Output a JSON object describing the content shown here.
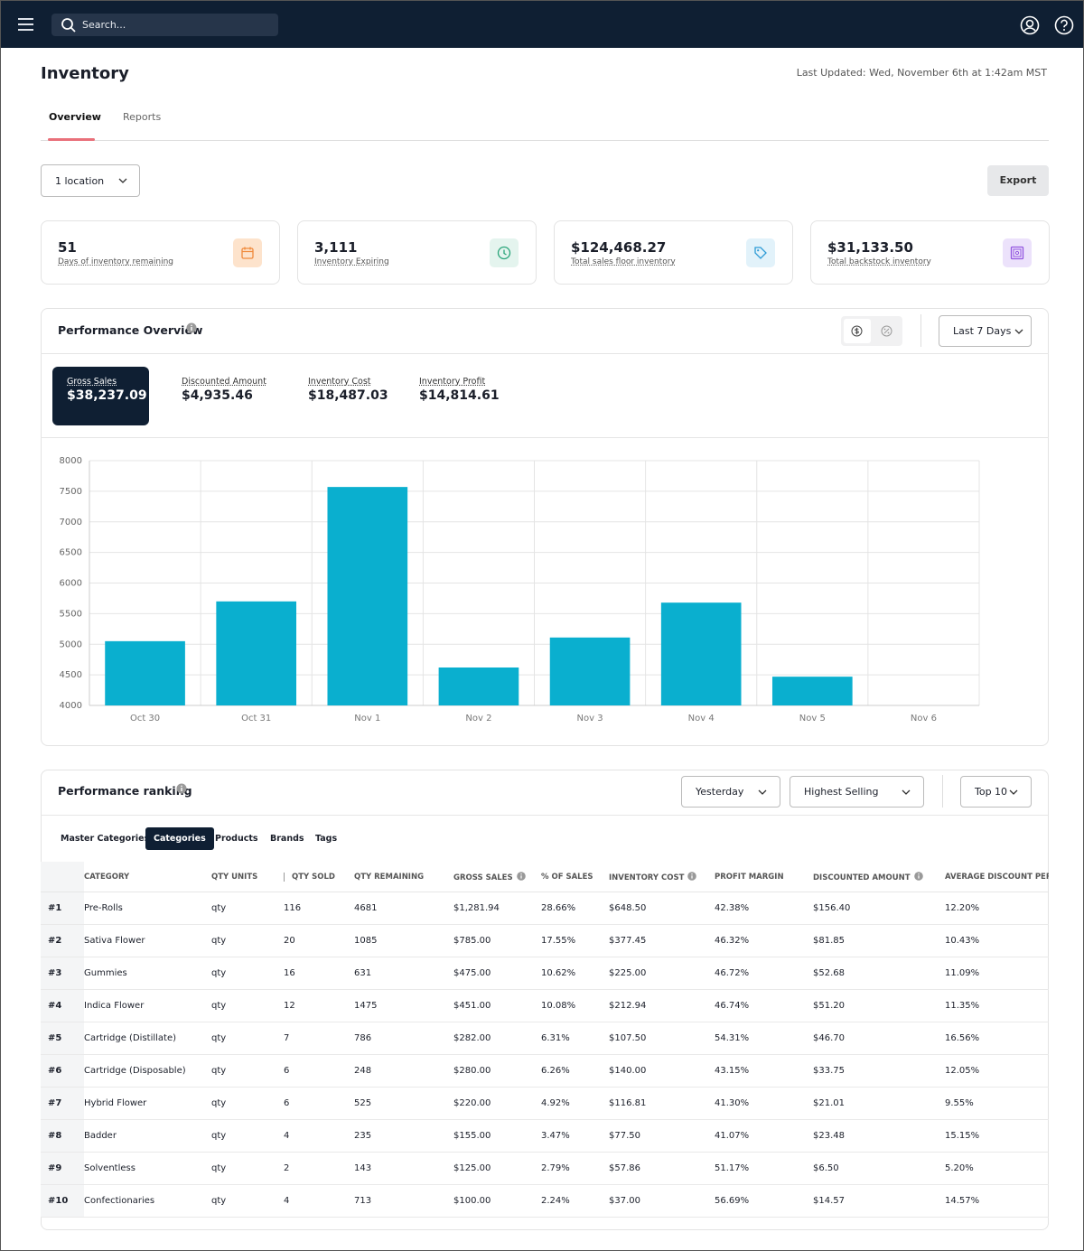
{
  "nav": {
    "search_placeholder": "Search..."
  },
  "header": {
    "title": "Inventory",
    "last_updated": "Last Updated: Wed, November 6th at 1:42am MST"
  },
  "tabs": [
    "Overview",
    "Reports"
  ],
  "controls": {
    "location": "1 location",
    "export": "Export"
  },
  "kpis": [
    {
      "value": "51",
      "label": "Days of inventory remaining"
    },
    {
      "value": "3,111",
      "label": "Inventory Expiring"
    },
    {
      "value": "$124,468.27",
      "label": "Total sales floor inventory"
    },
    {
      "value": "$31,133.50",
      "label": "Total backstock inventory"
    }
  ],
  "performance": {
    "title": "Performance Overview",
    "range": "Last 7 Days",
    "metrics": [
      {
        "label": "Gross Sales",
        "value": "$38,237.09"
      },
      {
        "label": "Discounted Amount",
        "value": "$4,935.46"
      },
      {
        "label": "Inventory Cost",
        "value": "$18,487.03"
      },
      {
        "label": "Inventory Profit",
        "value": "$14,814.61"
      }
    ]
  },
  "chart_data": {
    "type": "bar",
    "categories": [
      "Oct 30",
      "Oct 31",
      "Nov 1",
      "Nov 2",
      "Nov 3",
      "Nov 4",
      "Nov 5",
      "Nov 6"
    ],
    "values": [
      5050,
      5700,
      7570,
      4620,
      5110,
      5680,
      4470,
      null
    ],
    "color": "#0aafcf",
    "ylim": [
      4000,
      8000
    ],
    "yticks": [
      4000,
      4500,
      5000,
      5500,
      6000,
      6500,
      7000,
      7500,
      8000
    ],
    "grid": true
  },
  "ranking": {
    "title": "Performance ranking",
    "filters": [
      "Yesterday",
      "Highest Selling",
      "Top 10"
    ],
    "tabs": [
      "Master Categories",
      "Categories",
      "Products",
      "Brands",
      "Tags"
    ],
    "table": {
      "columns": [
        "CATEGORY",
        "QTY UNITS",
        "QTY SOLD",
        "QTY REMAINING",
        "GROSS SALES",
        "% OF SALES",
        "INVENTORY COST",
        "PROFIT MARGIN",
        "DISCOUNTED AMOUNT",
        "AVERAGE DISCOUNT PERC"
      ],
      "rows": [
        [
          "#1",
          "Pre-Rolls",
          "qty",
          "116",
          "4681",
          "$1,281.94",
          "28.66%",
          "$648.50",
          "42.38%",
          "$156.40",
          "12.20%"
        ],
        [
          "#2",
          "Sativa Flower",
          "qty",
          "20",
          "1085",
          "$785.00",
          "17.55%",
          "$377.45",
          "46.32%",
          "$81.85",
          "10.43%"
        ],
        [
          "#3",
          "Gummies",
          "qty",
          "16",
          "631",
          "$475.00",
          "10.62%",
          "$225.00",
          "46.72%",
          "$52.68",
          "11.09%"
        ],
        [
          "#4",
          "Indica Flower",
          "qty",
          "12",
          "1475",
          "$451.00",
          "10.08%",
          "$212.94",
          "46.74%",
          "$51.20",
          "11.35%"
        ],
        [
          "#5",
          "Cartridge (Distillate)",
          "qty",
          "7",
          "786",
          "$282.00",
          "6.31%",
          "$107.50",
          "54.31%",
          "$46.70",
          "16.56%"
        ],
        [
          "#6",
          "Cartridge (Disposable)",
          "qty",
          "6",
          "248",
          "$280.00",
          "6.26%",
          "$140.00",
          "43.15%",
          "$33.75",
          "12.05%"
        ],
        [
          "#7",
          "Hybrid Flower",
          "qty",
          "6",
          "525",
          "$220.00",
          "4.92%",
          "$116.81",
          "41.30%",
          "$21.01",
          "9.55%"
        ],
        [
          "#8",
          "Badder",
          "qty",
          "4",
          "235",
          "$155.00",
          "3.47%",
          "$77.50",
          "41.07%",
          "$23.48",
          "15.15%"
        ],
        [
          "#9",
          "Solventless",
          "qty",
          "2",
          "143",
          "$125.00",
          "2.79%",
          "$57.86",
          "51.17%",
          "$6.50",
          "5.20%"
        ],
        [
          "#10",
          "Confectionaries",
          "qty",
          "4",
          "713",
          "$100.00",
          "2.24%",
          "$37.00",
          "56.69%",
          "$14.57",
          "14.57%"
        ]
      ]
    }
  }
}
